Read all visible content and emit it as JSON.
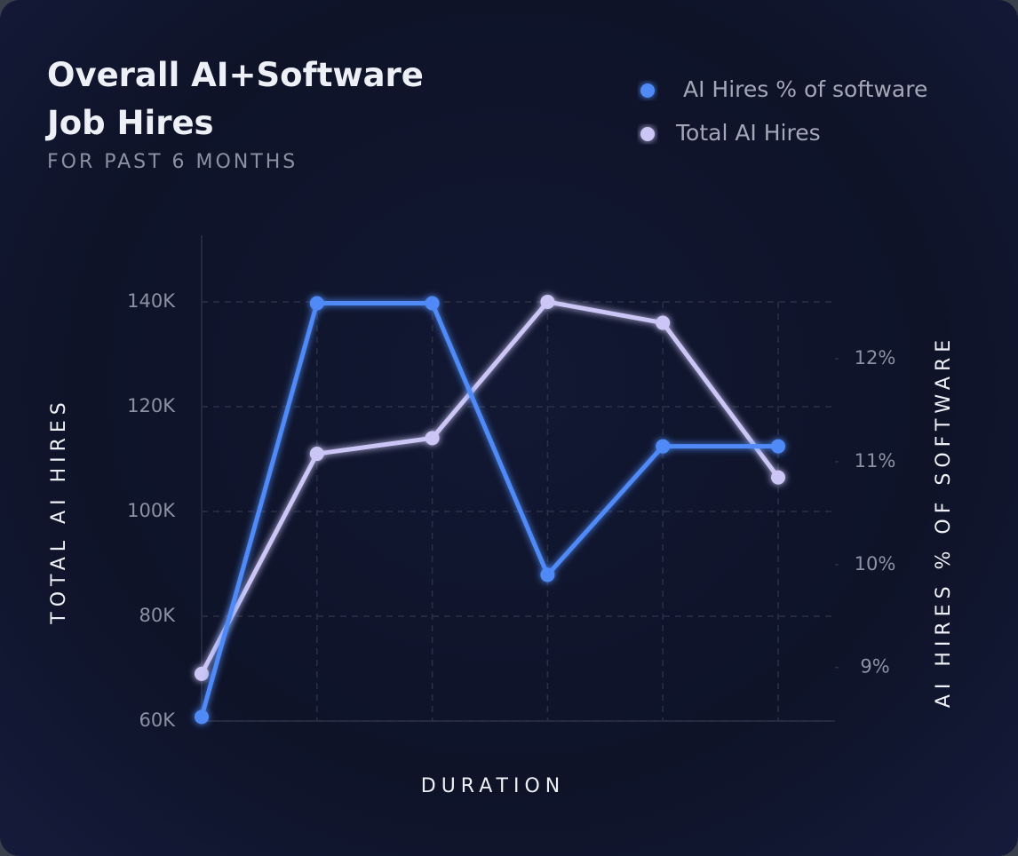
{
  "chart_data": {
    "type": "line",
    "title": "Overall AI+Software Job Hires",
    "subtitle": "FOR PAST 6 MONTHS",
    "x_label": "DURATION",
    "y_label": "TOTAL AI HIRES",
    "y2_label": "AI HIRES % OF SOFTWARE",
    "categories": [
      null,
      null,
      null,
      null,
      null,
      null
    ],
    "series": [
      {
        "name": "AI Hires % of software",
        "color": "#4f8af7",
        "axis": "y2",
        "values": [
          8.52,
          12.54,
          12.54,
          9.9,
          11.15,
          11.15
        ]
      },
      {
        "name": "Total AI Hires",
        "color": "#cbc6f6",
        "values": [
          69000,
          111000,
          114000,
          140000,
          136000,
          106500
        ]
      }
    ],
    "ylim": [
      60000,
      152700
    ],
    "yticks": [
      {
        "value": 60000,
        "label": "60K"
      },
      {
        "value": 80000,
        "label": "80K"
      },
      {
        "value": 100000,
        "label": "100K"
      },
      {
        "value": 120000,
        "label": "120K"
      },
      {
        "value": 140000,
        "label": "140K"
      }
    ],
    "y2lim": [
      8.48,
      13.2
    ],
    "y2ticks": [
      {
        "value": 9,
        "label": "9%"
      },
      {
        "value": 10,
        "label": "10%"
      },
      {
        "value": 11,
        "label": "11%"
      },
      {
        "value": 12,
        "label": "12%"
      }
    ],
    "grid": true
  }
}
